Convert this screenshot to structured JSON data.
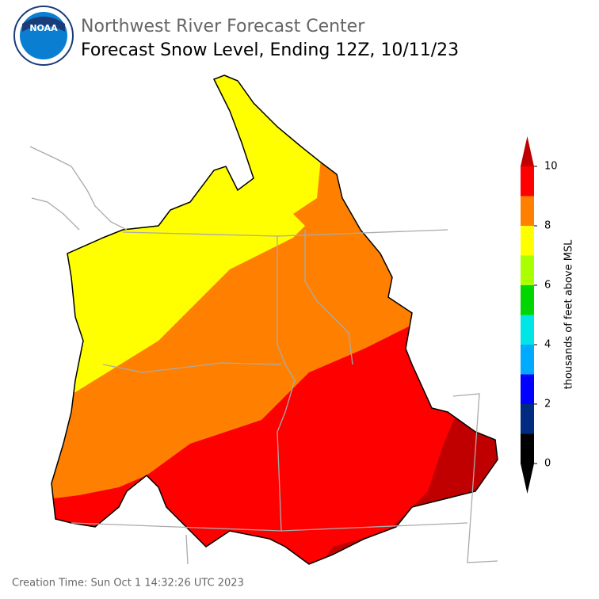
{
  "header": {
    "logo_text": "NOAA",
    "title": "Northwest River Forecast Center",
    "subtitle": "Forecast Snow Level, Ending 12Z, 10/11/23"
  },
  "colorbar": {
    "label": "thousands of feet above MSL",
    "levels": [
      0,
      1,
      2,
      3,
      4,
      5,
      6,
      7,
      8,
      9,
      10
    ],
    "colors": [
      "#000000",
      "#002b80",
      "#0000ff",
      "#00aaff",
      "#00e5e5",
      "#00d600",
      "#aaff00",
      "#ffff00",
      "#ff8000",
      "#ff0000"
    ],
    "under_color": "#000000",
    "over_color": "#c00000",
    "ticks": [
      0,
      2,
      4,
      6,
      8,
      10
    ]
  },
  "footer": "Creation Time: Sun Oct 1 14:32:26 UTC 2023"
}
